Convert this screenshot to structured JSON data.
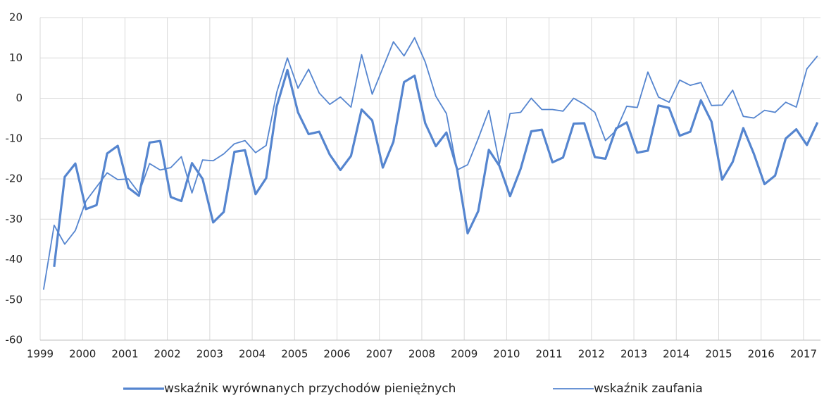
{
  "chart_data": {
    "type": "line",
    "x": [
      1999.08,
      1999.33,
      1999.58,
      1999.83,
      2000.08,
      2000.33,
      2000.58,
      2000.83,
      2001.08,
      2001.33,
      2001.58,
      2001.83,
      2002.08,
      2002.33,
      2002.58,
      2002.83,
      2003.08,
      2003.33,
      2003.58,
      2003.83,
      2004.08,
      2004.33,
      2004.58,
      2004.83,
      2005.08,
      2005.33,
      2005.58,
      2005.83,
      2006.08,
      2006.33,
      2006.58,
      2006.83,
      2007.08,
      2007.33,
      2007.58,
      2007.83,
      2008.08,
      2008.33,
      2008.58,
      2008.83,
      2009.08,
      2009.33,
      2009.58,
      2009.83,
      2010.08,
      2010.33,
      2010.58,
      2010.83,
      2011.08,
      2011.33,
      2011.58,
      2011.83,
      2012.08,
      2012.33,
      2012.58,
      2012.83,
      2013.08,
      2013.33,
      2013.58,
      2013.83,
      2014.08,
      2014.33,
      2014.58,
      2014.83,
      2015.08,
      2015.33,
      2015.58,
      2015.83,
      2016.08,
      2016.33,
      2016.58,
      2016.83,
      2017.08,
      2017.33
    ],
    "series": [
      {
        "name": "wskaźnik wyrównanych przychodów pieniężnych",
        "color": "#5585cf",
        "width": 3.2,
        "values": [
          null,
          -41.8,
          -19.5,
          -16.2,
          -27.5,
          -26.5,
          -13.7,
          -11.8,
          -22.2,
          -24.2,
          -11,
          -10.6,
          -24.5,
          -25.5,
          -16.1,
          -20,
          -30.8,
          -28.2,
          -13.3,
          -12.9,
          -23.8,
          -19.8,
          -2,
          7,
          -3.5,
          -8.9,
          -8.3,
          -14,
          -17.8,
          -14.3,
          -2.8,
          -5.5,
          -17.2,
          -10.8,
          4,
          5.6,
          -6.2,
          -11.9,
          -8.5,
          -17.5,
          -33.5,
          -28,
          -12.8,
          -16.8,
          -24.3,
          -17.5,
          -8.2,
          -7.8,
          -15.9,
          -14.7,
          -6.3,
          -6.2,
          -14.6,
          -15,
          -7.5,
          -6,
          -13.5,
          -13,
          -1.8,
          -2.4,
          -9.3,
          -8.3,
          -0.5,
          -5.8,
          -20.2,
          -15.8,
          -7.4,
          -13.8,
          -21.3,
          -19.2,
          -10,
          -7.7,
          -11.6,
          -6
        ]
      },
      {
        "name": "wskaźnik zaufania",
        "color": "#5585cf",
        "width": 1.8,
        "values": [
          -47.5,
          -31.5,
          -36.2,
          -32.8,
          -25.5,
          -22,
          -18.5,
          -20.2,
          -20,
          -23.5,
          -16.2,
          -17.8,
          -17.2,
          -14.5,
          -23.5,
          -15.3,
          -15.5,
          -13.8,
          -11.3,
          -10.5,
          -13.5,
          -11.7,
          1.5,
          10,
          2.5,
          7.2,
          1.3,
          -1.5,
          0.3,
          -2.2,
          10.8,
          1,
          7.5,
          14,
          10.5,
          15,
          9,
          0.5,
          -3.8,
          -17.8,
          -16.5,
          -10,
          -3,
          -16.3,
          -3.8,
          -3.5,
          0,
          -2.8,
          -2.8,
          -3.2,
          0,
          -1.5,
          -3.5,
          -10.5,
          -8,
          -2,
          -2.3,
          6.5,
          0.3,
          -1,
          4.5,
          3.2,
          3.9,
          -1.8,
          -1.7,
          2,
          -4.5,
          -4.9,
          -3,
          -3.5,
          -1,
          -2.2,
          7.3,
          10.5
        ]
      }
    ],
    "xlim": [
      1999,
      2017.4
    ],
    "xticks": [
      1999,
      2000,
      2001,
      2002,
      2003,
      2004,
      2005,
      2006,
      2007,
      2008,
      2009,
      2010,
      2011,
      2012,
      2013,
      2014,
      2015,
      2016,
      2017
    ],
    "ylim": [
      -60,
      20
    ],
    "yticks": [
      -60,
      -50,
      -40,
      -30,
      -20,
      -10,
      0,
      10,
      20
    ],
    "grid": true,
    "legend": "bottom"
  }
}
